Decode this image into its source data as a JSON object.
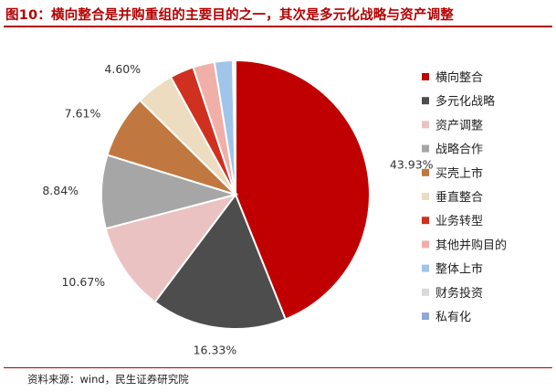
{
  "header": {
    "title": "图10：横向整合是并购重组的主要目的之一，其次是多元化战略与资产调整"
  },
  "footer": {
    "source": "资料来源：wind，民生证券研究院"
  },
  "chart_data": {
    "type": "pie",
    "legend_position": "right",
    "slices": [
      {
        "name": "横向整合",
        "value": 43.93,
        "label": "43.93%",
        "color": "#c00000"
      },
      {
        "name": "多元化战略",
        "value": 16.33,
        "label": "16.33%",
        "color": "#4d4d4d"
      },
      {
        "name": "资产调整",
        "value": 10.67,
        "label": "10.67%",
        "color": "#ebc2c2"
      },
      {
        "name": "战略合作",
        "value": 8.84,
        "label": "8.84%",
        "color": "#a6a6a6"
      },
      {
        "name": "买壳上市",
        "value": 7.61,
        "label": "7.61%",
        "color": "#c07840"
      },
      {
        "name": "垂直整合",
        "value": 4.6,
        "label": "4.60%",
        "color": "#eddcc0"
      },
      {
        "name": "业务转型",
        "value": 2.9,
        "label": "",
        "color": "#d03020"
      },
      {
        "name": "其他并购目的",
        "value": 2.6,
        "label": "",
        "color": "#f0b0a8"
      },
      {
        "name": "整体上市",
        "value": 2.2,
        "label": "",
        "color": "#a0c4ea"
      },
      {
        "name": "财务投资",
        "value": 0.25,
        "label": "",
        "color": "#d9d9d9"
      },
      {
        "name": "私有化",
        "value": 0.07,
        "label": "",
        "color": "#8fa8d8"
      }
    ]
  }
}
